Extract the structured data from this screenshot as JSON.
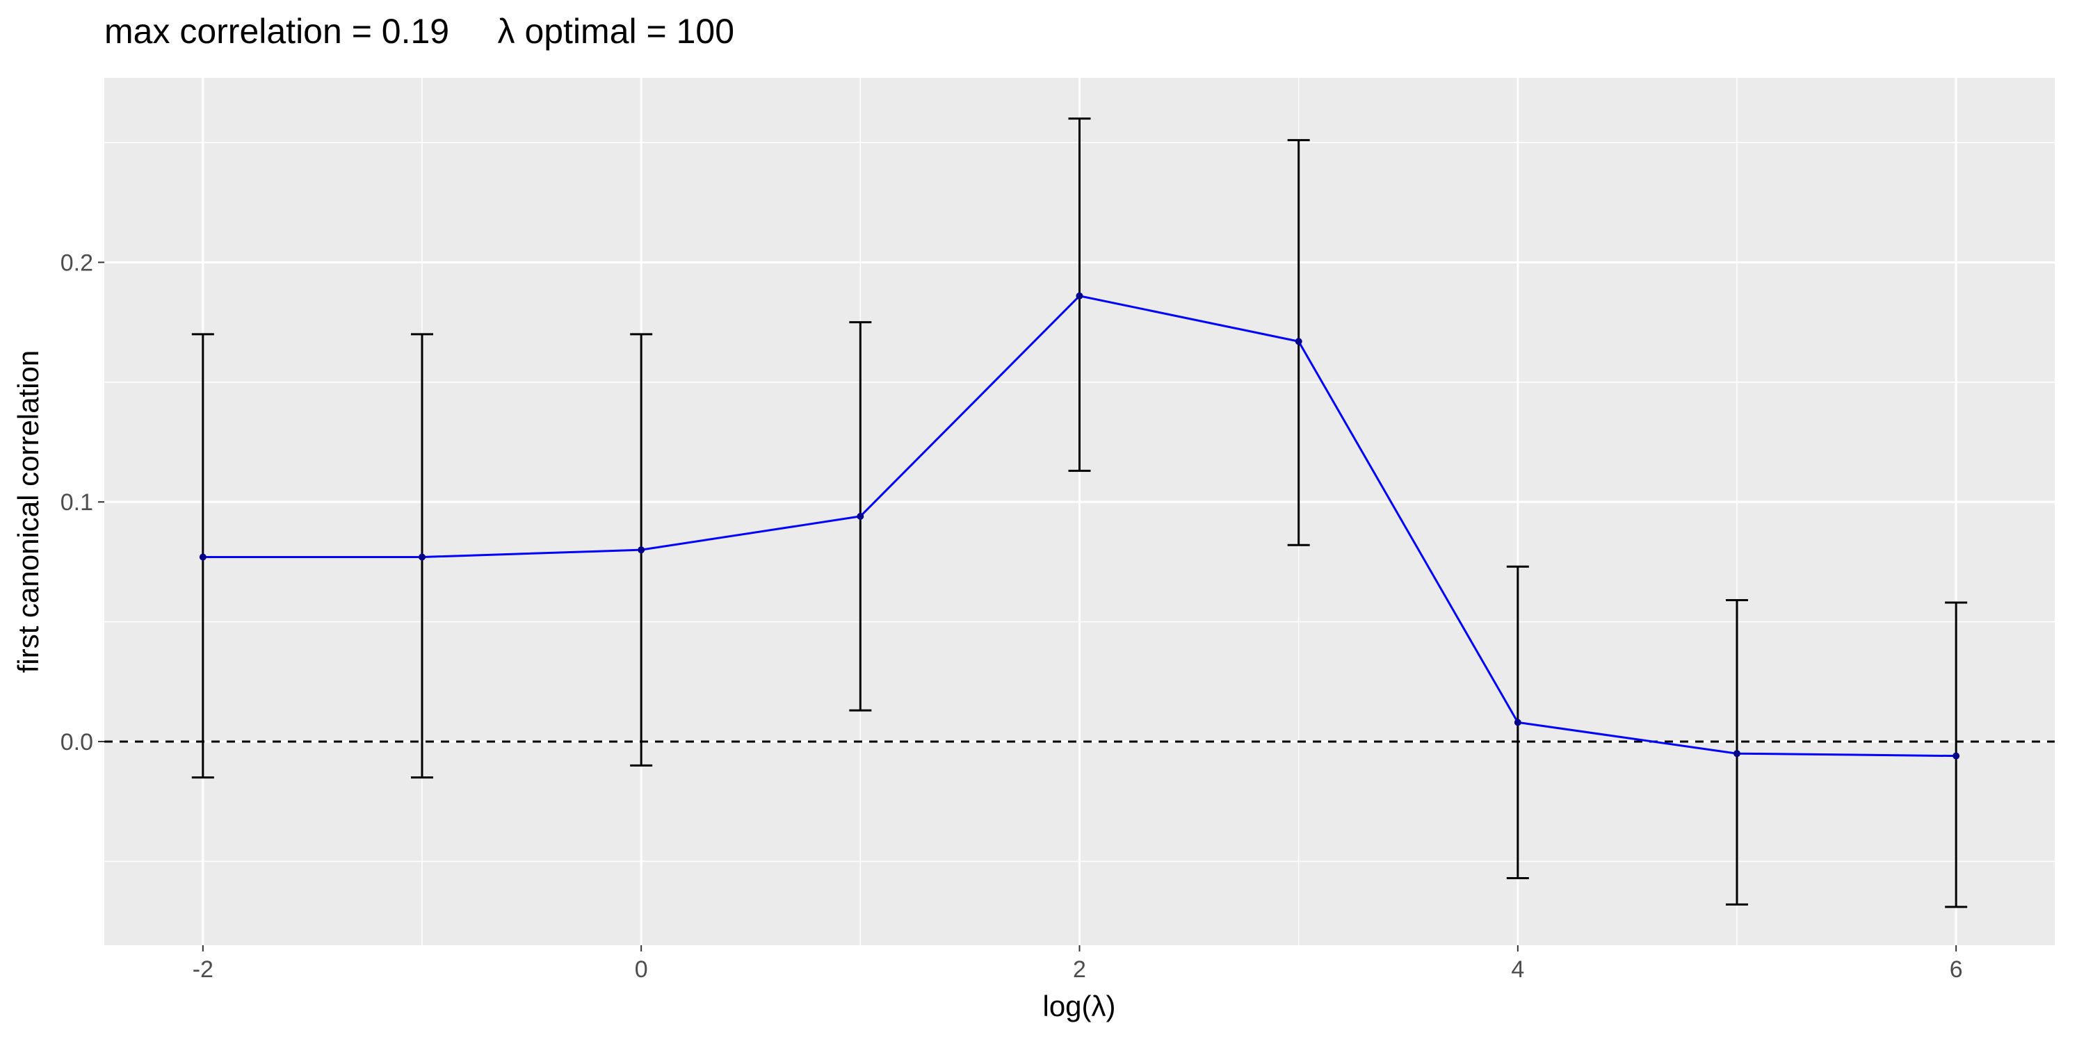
{
  "chart_data": {
    "type": "line",
    "title": "max correlation = 0.19     λ optimal = 100",
    "xlabel": "log(λ)",
    "ylabel": "first canonical correlation",
    "xlim": [
      -2.45,
      6.45
    ],
    "ylim": [
      -0.085,
      0.277
    ],
    "x_ticks": [
      -2,
      0,
      2,
      4,
      6
    ],
    "x_tick_labels": [
      "-2",
      "0",
      "2",
      "4",
      "6"
    ],
    "x_minor_ticks": [
      -1,
      1,
      3,
      5
    ],
    "y_ticks": [
      0.0,
      0.1,
      0.2
    ],
    "y_tick_labels": [
      "0.0",
      "0.1",
      "0.2"
    ],
    "y_minor_ticks": [
      -0.05,
      0.05,
      0.15,
      0.25
    ],
    "grid": true,
    "reference_line": {
      "y": 0,
      "style": "dashed",
      "color": "#000000"
    },
    "series": [
      {
        "color": "#0000ff",
        "points": [
          {
            "x": -2,
            "y": 0.077,
            "ymin": -0.015,
            "ymax": 0.17
          },
          {
            "x": -1,
            "y": 0.077,
            "ymin": -0.015,
            "ymax": 0.17
          },
          {
            "x": 0,
            "y": 0.08,
            "ymin": -0.01,
            "ymax": 0.17
          },
          {
            "x": 1,
            "y": 0.094,
            "ymin": 0.013,
            "ymax": 0.175
          },
          {
            "x": 2,
            "y": 0.186,
            "ymin": 0.113,
            "ymax": 0.26
          },
          {
            "x": 3,
            "y": 0.167,
            "ymin": 0.082,
            "ymax": 0.251
          },
          {
            "x": 4,
            "y": 0.008,
            "ymin": -0.057,
            "ymax": 0.073
          },
          {
            "x": 5,
            "y": -0.005,
            "ymin": -0.068,
            "ymax": 0.059
          },
          {
            "x": 6,
            "y": -0.006,
            "ymin": -0.069,
            "ymax": 0.058
          }
        ]
      }
    ],
    "errorbar_color": "#000000",
    "panel_background": "#ebebeb",
    "grid_color": "#ffffff"
  }
}
